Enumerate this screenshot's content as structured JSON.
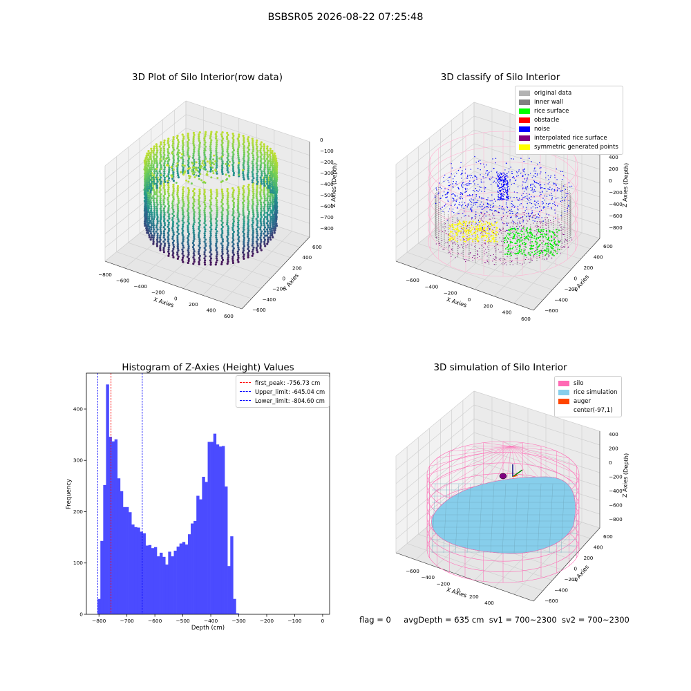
{
  "suptitle": "BSBSR05 2026-08-22 07:25:48",
  "panels": {
    "raw": {
      "title": "3D Plot of Silo Interior(row data)",
      "xlabel": "X Axies",
      "ylabel": "Y Axies",
      "zlabel": "Z Axies (Depth)",
      "xticks": [
        "−800",
        "−600",
        "−400",
        "−200",
        "0",
        "200",
        "400",
        "600"
      ],
      "yticks": [
        "−600",
        "−400",
        "−200",
        "0",
        "200",
        "400",
        "600"
      ],
      "zticks": [
        "0",
        "−100",
        "−200",
        "−300",
        "−400",
        "−500",
        "−600",
        "−700",
        "−800"
      ]
    },
    "classify": {
      "title": "3D classify of Silo Interior",
      "xlabel": "X Axies",
      "ylabel": "Y Axies",
      "zlabel": "Z Axies (Depth)",
      "xticks": [
        "−600",
        "−400",
        "−200",
        "0",
        "200",
        "400",
        "600"
      ],
      "yticks": [
        "−600",
        "−400",
        "−200",
        "0",
        "200",
        "400",
        "600"
      ],
      "zticks": [
        "400",
        "200",
        "0",
        "−200",
        "−400",
        "−600",
        "−800"
      ],
      "legend": [
        {
          "label": "original data",
          "color": "#b3b3b3"
        },
        {
          "label": "inner wall",
          "color": "#808080"
        },
        {
          "label": "rice surface",
          "color": "#00ff00"
        },
        {
          "label": "obstacle",
          "color": "#ff0000"
        },
        {
          "label": "noise",
          "color": "#0000ff"
        },
        {
          "label": "interpolated rice surface",
          "color": "#800080"
        },
        {
          "label": "symmetric generated points",
          "color": "#ffff00"
        }
      ]
    },
    "simulation": {
      "title": "3D simulation of Silo Interior",
      "xlabel": "X Axies",
      "ylabel": "Y Axies",
      "zlabel": "Z Axies (Depth)",
      "xticks": [
        "−600",
        "−400",
        "−200",
        "0",
        "200",
        "400"
      ],
      "yticks": [
        "−600",
        "−400",
        "−200",
        "0",
        "200",
        "400",
        "600"
      ],
      "zticks": [
        "400",
        "200",
        "0",
        "−200",
        "−400",
        "−600",
        "−800"
      ],
      "legend": [
        {
          "label": "silo",
          "color": "#ff69b4"
        },
        {
          "label": "rice simulation",
          "color": "#87ceeb"
        },
        {
          "label": "auger",
          "color": "#ff4500"
        },
        {
          "label": "center(-97,1)",
          "color": "none"
        }
      ]
    }
  },
  "chart_data": [
    {
      "type": "histogram",
      "title": "Histogram of Z-Axies (Height) Values",
      "xlabel": "Depth (cm)",
      "ylabel": "Frequency",
      "xlim": [
        -845,
        25
      ],
      "ylim": [
        0,
        470
      ],
      "xticks": [
        -800,
        -700,
        -600,
        -500,
        -400,
        -300,
        -200,
        -100,
        0
      ],
      "yticks": [
        0,
        100,
        200,
        300,
        400
      ],
      "bar_color": "#4b4bff",
      "bins_start": -805,
      "bin_width": 10.1,
      "values": [
        30,
        143,
        252,
        448,
        346,
        337,
        341,
        265,
        240,
        209,
        209,
        199,
        175,
        170,
        169,
        161,
        158,
        134,
        135,
        129,
        131,
        113,
        120,
        112,
        97,
        122,
        113,
        124,
        132,
        138,
        141,
        136,
        156,
        177,
        182,
        231,
        224,
        268,
        258,
        336,
        336,
        352,
        331,
        327,
        328,
        249,
        94,
        152,
        30,
        2
      ],
      "vlines": [
        {
          "x": -756.73,
          "color": "#ff0000",
          "label": "first_peak: -756.73 cm"
        },
        {
          "x": -645.04,
          "color": "#0000ff",
          "label": "Upper_limit: -645.04 cm"
        },
        {
          "x": -804.6,
          "color": "#0000ff",
          "label": "Lower_limit: -804.60 cm"
        }
      ],
      "legend_position": "top-right"
    }
  ],
  "footer": {
    "flag": "flag = 0",
    "avg": "avgDepth = 635 cm",
    "sv1": "sv1 = 700~2300",
    "sv2": "sv2 = 700~2300"
  }
}
